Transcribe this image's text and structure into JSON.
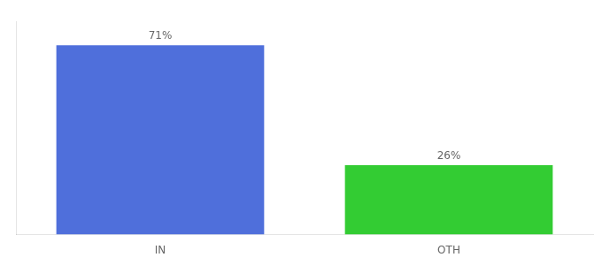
{
  "chart_data": {
    "type": "bar",
    "categories": [
      "IN",
      "OTH"
    ],
    "values": [
      71,
      26
    ],
    "value_labels": [
      "71%",
      "26%"
    ],
    "colors": [
      "#4f6fdb",
      "#33cc33"
    ],
    "ylim": [
      0,
      80
    ],
    "data_labels": true,
    "tick_labels": "x",
    "grid": false
  }
}
